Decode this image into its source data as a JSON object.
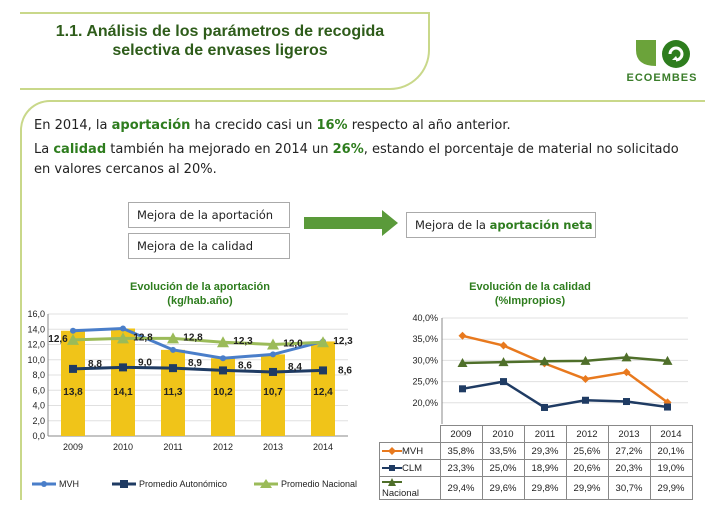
{
  "header": {
    "title_line1": "1.1. Análisis de los parámetros de recogida",
    "title_line2": "selectiva de envases ligeros",
    "logo_text": "ECOEMBES"
  },
  "text": {
    "p1_a": "En 2014, la ",
    "p1_b": "aportación",
    "p1_c": " ha crecido casi un ",
    "p1_d": "16%",
    "p1_e": " respecto al año anterior.",
    "p2_a": "La ",
    "p2_b": "calidad",
    "p2_c": " también ha mejorado en 2014 un ",
    "p2_d": "26%",
    "p2_e": ", estando el porcentaje de material no solicitado",
    "p2_f": "en valores cercanos al 20%."
  },
  "tags": {
    "mejora_aportacion": "Mejora de la aportación",
    "mejora_calidad": "Mejora de la calidad",
    "neta_a": "Mejora de la ",
    "neta_b": "aportación neta"
  },
  "colors": {
    "accent": "#2e7d1e",
    "border": "#c9d88a",
    "arrow": "#5a9a3a"
  },
  "chart_data": [
    {
      "type": "bar",
      "title": "Evolución de la aportación",
      "subtitle": "(kg/hab.año)",
      "categories": [
        "2009",
        "2010",
        "2011",
        "2012",
        "2013",
        "2014"
      ],
      "ylim": [
        0,
        16
      ],
      "yticks": [
        "0,0",
        "2,0",
        "4,0",
        "6,0",
        "8,0",
        "10,0",
        "12,0",
        "14,0",
        "16,0"
      ],
      "series": [
        {
          "name": "MVH",
          "type": "bar+line",
          "color": "#4a7ec9",
          "values": [
            13.8,
            14.1,
            11.3,
            10.2,
            10.7,
            12.4
          ],
          "labels": [
            "13,8",
            "14,1",
            "11,3",
            "10,2",
            "10,7",
            "12,4"
          ]
        },
        {
          "name": "Promedio Autonómico",
          "type": "line",
          "color": "#1f3b63",
          "values": [
            8.8,
            9.0,
            8.9,
            8.6,
            8.4,
            8.6
          ],
          "labels": [
            "8,8",
            "9,0",
            "8,9",
            "8,6",
            "8,4",
            "8,6"
          ]
        },
        {
          "name": "Promedio Nacional",
          "type": "line",
          "color": "#9bbb59",
          "values": [
            12.6,
            12.8,
            12.8,
            12.3,
            12.0,
            12.3
          ],
          "labels": [
            "12,6",
            "12,8",
            "12,8",
            "12,3",
            "12,0",
            "12,3"
          ]
        }
      ],
      "bar_color": "#f0c419",
      "legend": "bottom"
    },
    {
      "type": "line",
      "title": "Evolución de la calidad",
      "subtitle": "(%Impropios)",
      "categories": [
        "2009",
        "2010",
        "2011",
        "2012",
        "2013",
        "2014"
      ],
      "ylim": [
        15,
        40
      ],
      "yticks": [
        "20,0%",
        "25,0%",
        "30,0%",
        "35,0%",
        "40,0%"
      ],
      "series": [
        {
          "name": "MVH",
          "color": "#e8791e",
          "values": [
            35.8,
            33.5,
            29.3,
            25.6,
            27.2,
            20.1
          ],
          "labels": [
            "35,8%",
            "33,5%",
            "29,3%",
            "25,6%",
            "27,2%",
            "20,1%"
          ]
        },
        {
          "name": "CLM",
          "color": "#1f3b63",
          "values": [
            23.3,
            25.0,
            18.9,
            20.6,
            20.3,
            19.0
          ],
          "labels": [
            "23,3%",
            "25,0%",
            "18,9%",
            "20,6%",
            "20,3%",
            "19,0%"
          ]
        },
        {
          "name": "Nacional",
          "color": "#4f6f2a",
          "values": [
            29.4,
            29.6,
            29.8,
            29.9,
            30.7,
            29.9
          ],
          "labels": [
            "29,4%",
            "29,6%",
            "29,8%",
            "29,9%",
            "30,7%",
            "29,9%"
          ]
        }
      ],
      "legend": "table"
    }
  ]
}
